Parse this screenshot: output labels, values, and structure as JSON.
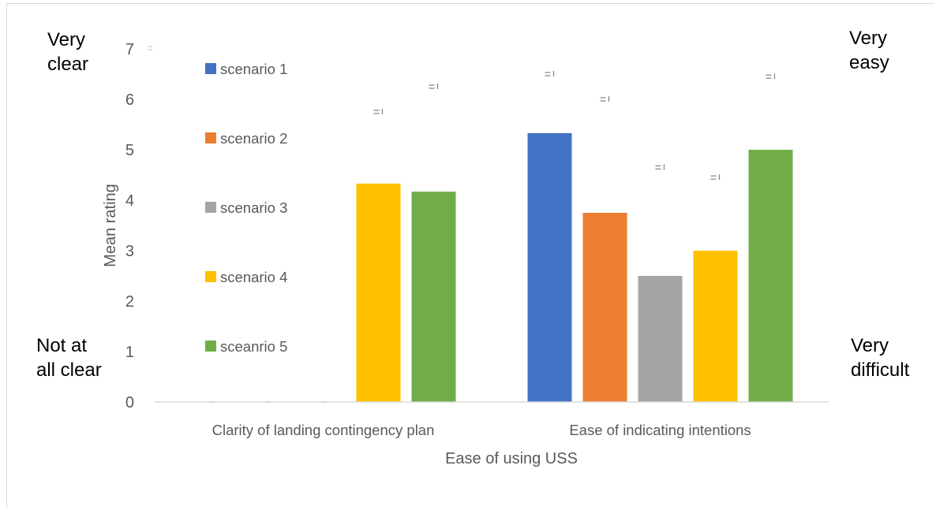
{
  "chart_data": {
    "type": "bar",
    "title": "",
    "xlabel": "Ease of using USS",
    "ylabel": "Mean rating",
    "ylim": [
      0,
      7
    ],
    "yticks": [
      0,
      1,
      2,
      3,
      4,
      5,
      6,
      7
    ],
    "grid": false,
    "legend_position": "left-inside",
    "categories": [
      "Clarity of landing contingency plan",
      "Ease of indicating intentions"
    ],
    "series": [
      {
        "name": "scenario 1",
        "color": "#4472C4",
        "values": [
          0,
          5.33
        ],
        "error_upper": [
          0,
          6.5
        ]
      },
      {
        "name": "scenario 2",
        "color": "#ED7D31",
        "values": [
          0,
          3.75
        ],
        "error_upper": [
          0,
          6.0
        ]
      },
      {
        "name": "scenario 3",
        "color": "#A5A5A5",
        "values": [
          0,
          2.5
        ],
        "error_upper": [
          0,
          4.65
        ]
      },
      {
        "name": "scenario 4",
        "color": "#FFC000",
        "values": [
          4.33,
          3.0
        ],
        "error_upper": [
          5.75,
          4.45
        ]
      },
      {
        "name": "sceanrio 5",
        "color": "#70AD47",
        "values": [
          4.17,
          5.0
        ],
        "error_upper": [
          6.25,
          6.45
        ]
      }
    ]
  },
  "annotations": {
    "left_top": [
      "Very",
      "clear"
    ],
    "left_bottom": [
      "Not at",
      "all clear"
    ],
    "right_top": [
      "Very",
      "easy"
    ],
    "right_bottom": [
      "Very",
      "difficult"
    ]
  }
}
